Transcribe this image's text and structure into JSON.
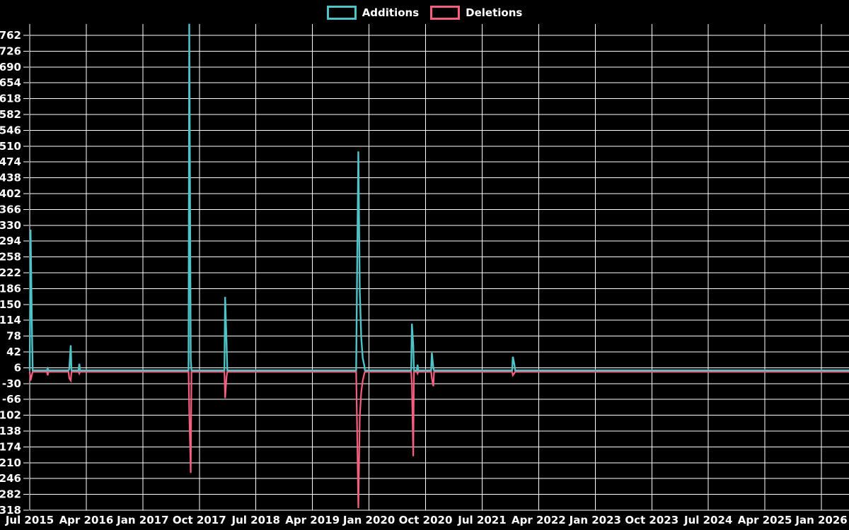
{
  "legend": {
    "additions_label": "Additions",
    "deletions_label": "Deletions"
  },
  "colors": {
    "additions": "#4ec4c8",
    "deletions": "#f55f7f",
    "grid": "#ffffff",
    "background": "#000000",
    "text": "#ffffff"
  },
  "axes": {
    "y_ticks": [
      762,
      726,
      690,
      654,
      618,
      582,
      546,
      510,
      474,
      438,
      402,
      366,
      330,
      294,
      258,
      222,
      186,
      150,
      114,
      78,
      42,
      6,
      -30,
      -66,
      -102,
      -138,
      -174,
      -210,
      -246,
      -282,
      -318
    ],
    "x_ticks": [
      "Jul 2015",
      "Apr 2016",
      "Jan 2017",
      "Oct 2017",
      "Jul 2018",
      "Apr 2019",
      "Jan 2020",
      "Oct 2020",
      "Jul 2021",
      "Apr 2022",
      "Jan 2023",
      "Oct 2023",
      "Jul 2024",
      "Apr 2025",
      "Jan 2026"
    ]
  },
  "chart_data": {
    "type": "line",
    "title": "",
    "xlabel": "",
    "ylabel": "",
    "grid": true,
    "legend_position": "top-center",
    "ylim": [
      -318,
      788
    ],
    "x_range": [
      "Jul 2015",
      "Jan 2026"
    ],
    "baseline": 0,
    "series": [
      {
        "name": "Additions",
        "color": "#4ec4c8"
      },
      {
        "name": "Deletions",
        "color": "#f55f7f"
      }
    ],
    "points": [
      {
        "date": "2015-07-05",
        "additions": 320,
        "deletions": -20
      },
      {
        "date": "2015-07-12",
        "additions": 90,
        "deletions": -6
      },
      {
        "date": "2015-09-27",
        "additions": 4,
        "deletions": -8
      },
      {
        "date": "2016-01-10",
        "additions": 3,
        "deletions": -15
      },
      {
        "date": "2016-01-17",
        "additions": 57,
        "deletions": -20
      },
      {
        "date": "2016-02-28",
        "additions": 15,
        "deletions": -4
      },
      {
        "date": "2017-08-13",
        "additions": 788,
        "deletions": -90
      },
      {
        "date": "2017-08-20",
        "additions": 25,
        "deletions": -230
      },
      {
        "date": "2018-02-04",
        "additions": 167,
        "deletions": -60
      },
      {
        "date": "2018-02-11",
        "additions": 63,
        "deletions": -12
      },
      {
        "date": "2019-11-03",
        "additions": 170,
        "deletions": -95
      },
      {
        "date": "2019-11-10",
        "additions": 498,
        "deletions": -310
      },
      {
        "date": "2019-11-17",
        "additions": 181,
        "deletions": -103
      },
      {
        "date": "2019-11-24",
        "additions": 74,
        "deletions": -46
      },
      {
        "date": "2019-12-01",
        "additions": 28,
        "deletions": -20
      },
      {
        "date": "2019-12-08",
        "additions": 12,
        "deletions": -5
      },
      {
        "date": "2020-07-26",
        "additions": 106,
        "deletions": -30
      },
      {
        "date": "2020-08-02",
        "additions": 58,
        "deletions": -192
      },
      {
        "date": "2020-08-23",
        "additions": 13,
        "deletions": -4
      },
      {
        "date": "2020-11-01",
        "additions": 40,
        "deletions": -15
      },
      {
        "date": "2020-11-08",
        "additions": 6,
        "deletions": -33
      },
      {
        "date": "2021-11-28",
        "additions": 31,
        "deletions": -8
      },
      {
        "date": "2021-12-05",
        "additions": 14,
        "deletions": -3
      }
    ]
  }
}
